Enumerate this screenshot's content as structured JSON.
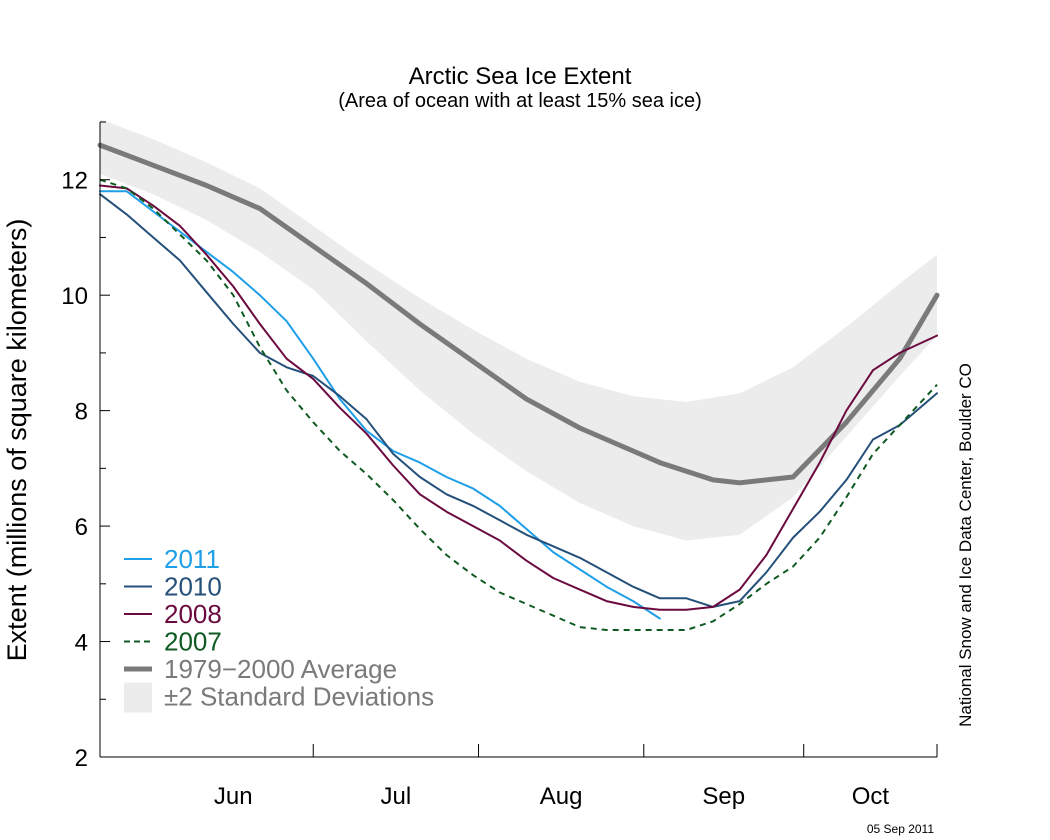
{
  "chart_data": {
    "type": "line",
    "title": "Arctic Sea Ice Extent",
    "subtitle": "(Area of ocean with at least 15% sea ice)",
    "ylabel": "Extent (millions of square kilometers)",
    "xlabel": "",
    "ylim": [
      2,
      13
    ],
    "xlim": [
      "2011-05-22",
      "2011-10-26"
    ],
    "yticks": [
      2,
      4,
      6,
      8,
      10,
      12
    ],
    "x_months": [
      {
        "label": "Jun",
        "start": "2011-06-01",
        "end": "2011-07-01"
      },
      {
        "label": "Jul",
        "start": "2011-07-01",
        "end": "2011-08-01"
      },
      {
        "label": "Aug",
        "start": "2011-08-01",
        "end": "2011-09-01"
      },
      {
        "label": "Sep",
        "start": "2011-09-01",
        "end": "2011-10-01"
      },
      {
        "label": "Oct",
        "start": "2011-10-01",
        "end": "2011-10-26"
      }
    ],
    "colors": {
      "2011": "#1e9fe8",
      "2010": "#24507a",
      "2008": "#6b0a3f",
      "2007": "#0f5a22",
      "average": "#7a7a7a",
      "stddev_band": "#ececec"
    },
    "band": {
      "name": "±2 Standard Deviations",
      "x": [
        "2011-05-22",
        "2011-06-01",
        "2011-06-11",
        "2011-06-21",
        "2011-07-01",
        "2011-07-11",
        "2011-07-21",
        "2011-07-31",
        "2011-08-10",
        "2011-08-20",
        "2011-08-30",
        "2011-09-09",
        "2011-09-19",
        "2011-09-29",
        "2011-10-09",
        "2011-10-19",
        "2011-10-26"
      ],
      "upper": [
        13.05,
        12.7,
        12.3,
        11.85,
        11.2,
        10.55,
        9.95,
        9.4,
        8.9,
        8.5,
        8.25,
        8.15,
        8.3,
        8.75,
        9.45,
        10.2,
        10.7
      ],
      "lower": [
        12.1,
        11.75,
        11.3,
        10.75,
        10.1,
        9.2,
        8.35,
        7.6,
        6.95,
        6.4,
        6.0,
        5.75,
        5.85,
        6.5,
        7.55,
        8.6,
        9.3
      ]
    },
    "series": [
      {
        "name": "1979−2000 Average",
        "key": "average",
        "style": "thick",
        "x": [
          "2011-05-22",
          "2011-06-01",
          "2011-06-11",
          "2011-06-21",
          "2011-07-01",
          "2011-07-11",
          "2011-07-21",
          "2011-07-31",
          "2011-08-10",
          "2011-08-20",
          "2011-08-30",
          "2011-09-04",
          "2011-09-09",
          "2011-09-14",
          "2011-09-19",
          "2011-09-29",
          "2011-10-09",
          "2011-10-19",
          "2011-10-26"
        ],
        "values": [
          12.6,
          12.25,
          11.9,
          11.5,
          10.85,
          10.2,
          9.5,
          8.85,
          8.2,
          7.7,
          7.3,
          7.1,
          6.95,
          6.8,
          6.75,
          6.85,
          7.8,
          8.9,
          10.0
        ]
      },
      {
        "name": "2011",
        "key": "2011",
        "style": "solid",
        "x": [
          "2011-05-22",
          "2011-05-27",
          "2011-06-01",
          "2011-06-06",
          "2011-06-11",
          "2011-06-16",
          "2011-06-21",
          "2011-06-26",
          "2011-07-01",
          "2011-07-06",
          "2011-07-11",
          "2011-07-16",
          "2011-07-21",
          "2011-07-26",
          "2011-07-31",
          "2011-08-05",
          "2011-08-10",
          "2011-08-15",
          "2011-08-20",
          "2011-08-25",
          "2011-08-30",
          "2011-09-04"
        ],
        "values": [
          11.8,
          11.8,
          11.45,
          11.1,
          10.75,
          10.4,
          10.0,
          9.55,
          8.9,
          8.2,
          7.65,
          7.3,
          7.1,
          6.85,
          6.65,
          6.35,
          5.95,
          5.55,
          5.25,
          4.95,
          4.7,
          4.4
        ]
      },
      {
        "name": "2010",
        "key": "2010",
        "style": "solid",
        "x": [
          "2011-05-22",
          "2011-05-27",
          "2011-06-01",
          "2011-06-06",
          "2011-06-11",
          "2011-06-16",
          "2011-06-21",
          "2011-06-26",
          "2011-07-01",
          "2011-07-06",
          "2011-07-11",
          "2011-07-16",
          "2011-07-21",
          "2011-07-26",
          "2011-07-31",
          "2011-08-05",
          "2011-08-10",
          "2011-08-15",
          "2011-08-20",
          "2011-08-25",
          "2011-08-30",
          "2011-09-04",
          "2011-09-09",
          "2011-09-14",
          "2011-09-19",
          "2011-09-24",
          "2011-09-29",
          "2011-10-04",
          "2011-10-09",
          "2011-10-14",
          "2011-10-19",
          "2011-10-26"
        ],
        "values": [
          11.75,
          11.4,
          11.0,
          10.6,
          10.05,
          9.5,
          9.0,
          8.75,
          8.6,
          8.25,
          7.85,
          7.25,
          6.85,
          6.55,
          6.35,
          6.1,
          5.85,
          5.65,
          5.45,
          5.2,
          4.95,
          4.75,
          4.75,
          4.6,
          4.7,
          5.2,
          5.8,
          6.25,
          6.8,
          7.5,
          7.75,
          8.3
        ]
      },
      {
        "name": "2008",
        "key": "2008",
        "style": "solid",
        "x": [
          "2011-05-22",
          "2011-05-27",
          "2011-06-01",
          "2011-06-06",
          "2011-06-11",
          "2011-06-16",
          "2011-06-21",
          "2011-06-26",
          "2011-07-01",
          "2011-07-06",
          "2011-07-11",
          "2011-07-16",
          "2011-07-21",
          "2011-07-26",
          "2011-07-31",
          "2011-08-05",
          "2011-08-10",
          "2011-08-15",
          "2011-08-20",
          "2011-08-25",
          "2011-08-30",
          "2011-09-04",
          "2011-09-09",
          "2011-09-14",
          "2011-09-19",
          "2011-09-24",
          "2011-09-29",
          "2011-10-04",
          "2011-10-09",
          "2011-10-14",
          "2011-10-19",
          "2011-10-26"
        ],
        "values": [
          11.9,
          11.85,
          11.55,
          11.2,
          10.7,
          10.15,
          9.5,
          8.9,
          8.55,
          8.05,
          7.6,
          7.05,
          6.55,
          6.25,
          6.0,
          5.75,
          5.4,
          5.1,
          4.9,
          4.7,
          4.6,
          4.55,
          4.55,
          4.6,
          4.9,
          5.5,
          6.3,
          7.1,
          8.0,
          8.7,
          9.0,
          9.3
        ]
      },
      {
        "name": "2007",
        "key": "2007",
        "style": "dashed",
        "x": [
          "2011-05-22",
          "2011-05-27",
          "2011-06-01",
          "2011-06-06",
          "2011-06-11",
          "2011-06-16",
          "2011-06-21",
          "2011-06-26",
          "2011-07-01",
          "2011-07-06",
          "2011-07-11",
          "2011-07-16",
          "2011-07-21",
          "2011-07-26",
          "2011-07-31",
          "2011-08-05",
          "2011-08-10",
          "2011-08-15",
          "2011-08-20",
          "2011-08-25",
          "2011-08-30",
          "2011-09-04",
          "2011-09-09",
          "2011-09-14",
          "2011-09-19",
          "2011-09-24",
          "2011-09-29",
          "2011-10-04",
          "2011-10-09",
          "2011-10-14",
          "2011-10-19",
          "2011-10-26"
        ],
        "values": [
          12.0,
          11.85,
          11.5,
          11.05,
          10.6,
          10.0,
          9.1,
          8.35,
          7.8,
          7.3,
          6.9,
          6.45,
          5.95,
          5.5,
          5.15,
          4.85,
          4.65,
          4.45,
          4.25,
          4.2,
          4.2,
          4.2,
          4.2,
          4.35,
          4.65,
          5.0,
          5.3,
          5.8,
          6.5,
          7.25,
          7.75,
          8.45
        ]
      }
    ],
    "legend": [
      {
        "label": "2011",
        "key": "2011",
        "style": "solid"
      },
      {
        "label": "2010",
        "key": "2010",
        "style": "solid"
      },
      {
        "label": "2008",
        "key": "2008",
        "style": "solid"
      },
      {
        "label": "2007",
        "key": "2007",
        "style": "dashed"
      },
      {
        "label": "1979−2000 Average",
        "key": "average",
        "style": "thick"
      },
      {
        "label": "±2 Standard Deviations",
        "key": "stddev_band",
        "style": "band"
      }
    ],
    "legend_position": "bottom-left",
    "grid": false,
    "credit": "National Snow and Ice Data Center, Boulder CO",
    "date_stamp": "05 Sep 2011"
  }
}
